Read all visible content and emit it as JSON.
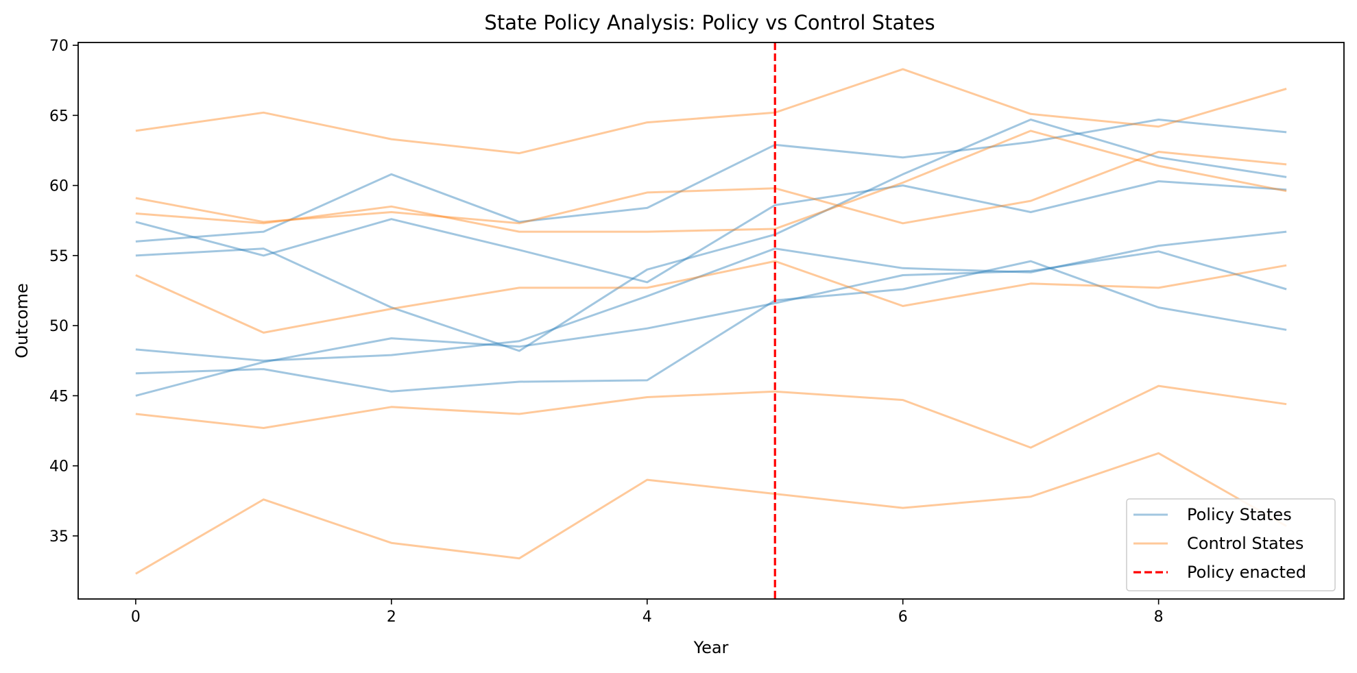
{
  "chart_data": {
    "type": "line",
    "title": "State Policy Analysis: Policy vs Control States",
    "xlabel": "Year",
    "ylabel": "Outcome",
    "xlim": [
      -0.45,
      9.45
    ],
    "ylim": [
      30.5,
      70.2
    ],
    "x_ticks": [
      0,
      2,
      4,
      6,
      8
    ],
    "y_ticks": [
      35,
      40,
      45,
      50,
      55,
      60,
      65,
      70
    ],
    "x": [
      0,
      1,
      2,
      3,
      4,
      5,
      6,
      7,
      8,
      9
    ],
    "policy_year": 5,
    "grid": false,
    "legend_position": "lower right",
    "colors": {
      "policy": "#1f77b4",
      "control": "#ff7f0e",
      "policy_line": "#ff0000"
    },
    "legend": [
      {
        "label": "Policy States",
        "style": "policy"
      },
      {
        "label": "Control States",
        "style": "control"
      },
      {
        "label": "Policy enacted",
        "style": "policy_line"
      }
    ],
    "series": [
      {
        "group": "policy",
        "values": [
          56.0,
          56.7,
          60.8,
          57.4,
          58.4,
          62.9,
          62.0,
          63.1,
          64.7,
          63.8
        ]
      },
      {
        "group": "policy",
        "values": [
          55.0,
          55.5,
          51.3,
          48.2,
          54.0,
          56.5,
          60.8,
          64.7,
          62.0,
          60.6
        ]
      },
      {
        "group": "policy",
        "values": [
          57.4,
          55.0,
          57.6,
          55.4,
          53.1,
          58.6,
          60.0,
          58.1,
          60.3,
          59.7
        ]
      },
      {
        "group": "policy",
        "values": [
          48.3,
          47.5,
          47.9,
          48.9,
          52.1,
          55.5,
          54.1,
          53.8,
          55.7,
          56.7
        ]
      },
      {
        "group": "policy",
        "values": [
          46.6,
          46.9,
          45.3,
          46.0,
          46.1,
          51.8,
          52.6,
          54.6,
          51.3,
          49.7
        ]
      },
      {
        "group": "policy",
        "values": [
          45.0,
          47.4,
          49.1,
          48.5,
          49.8,
          51.6,
          53.6,
          53.9,
          55.3,
          52.6
        ]
      },
      {
        "group": "control",
        "values": [
          63.9,
          65.2,
          63.3,
          62.3,
          64.5,
          65.2,
          68.3,
          65.1,
          64.2,
          66.9
        ]
      },
      {
        "group": "control",
        "values": [
          59.1,
          57.4,
          58.1,
          57.3,
          59.5,
          59.8,
          57.3,
          58.9,
          62.4,
          61.5
        ]
      },
      {
        "group": "control",
        "values": [
          58.0,
          57.3,
          58.5,
          56.7,
          56.7,
          56.9,
          60.2,
          63.9,
          61.4,
          59.6
        ]
      },
      {
        "group": "control",
        "values": [
          53.6,
          49.5,
          51.2,
          52.7,
          52.7,
          54.6,
          51.4,
          53.0,
          52.7,
          54.3
        ]
      },
      {
        "group": "control",
        "values": [
          43.7,
          42.7,
          44.2,
          43.7,
          44.9,
          45.3,
          44.7,
          41.3,
          45.7,
          44.4
        ]
      },
      {
        "group": "control",
        "values": [
          32.3,
          37.6,
          34.5,
          33.4,
          39.0,
          38.0,
          37.0,
          37.8,
          40.9,
          35.7
        ]
      }
    ]
  }
}
